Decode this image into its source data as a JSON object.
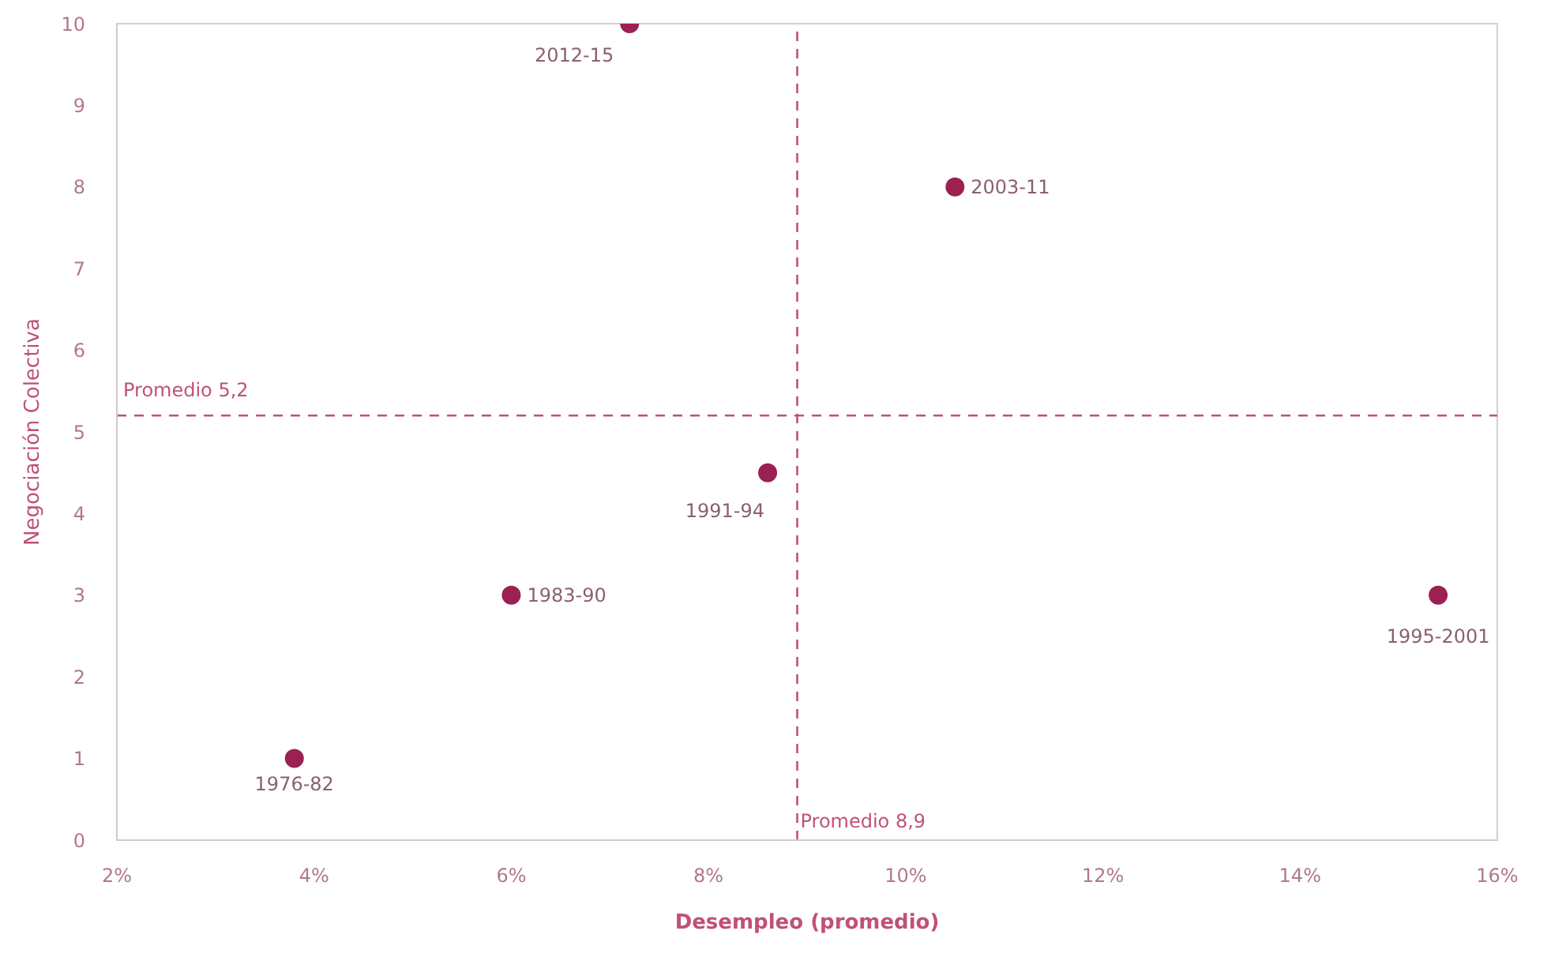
{
  "chart_data": {
    "type": "scatter",
    "xlabel": "Desempleo (promedio)",
    "ylabel": "Negociación Colectiva",
    "x": [
      3.8,
      6.0,
      8.6,
      15.4,
      10.5,
      7.2
    ],
    "series": [
      {
        "color": "#9b2152",
        "values": [
          1,
          3,
          4.5,
          3,
          8,
          10
        ]
      }
    ],
    "marker": "circle",
    "xlim": [
      2,
      16
    ],
    "xticks": [
      {
        "value": 2,
        "label": "2%"
      },
      {
        "value": 4,
        "label": "4%"
      },
      {
        "value": 6,
        "label": "6%"
      },
      {
        "value": 8,
        "label": "8%"
      },
      {
        "value": 10,
        "label": "10%"
      },
      {
        "value": 12,
        "label": "12%"
      },
      {
        "value": 14,
        "label": "14%"
      },
      {
        "value": 16,
        "label": "16%"
      }
    ],
    "ylim": [
      0,
      10
    ],
    "yticks": [
      0,
      1,
      2,
      3,
      4,
      5,
      6,
      7,
      8,
      9,
      10
    ],
    "ref_lines": [
      {
        "axis": "y",
        "value": 5.2,
        "label": "Promedio 5,2",
        "color": "#c0507a",
        "line_style": "dashed"
      },
      {
        "axis": "x",
        "value": 8.9,
        "label": "Promedio 8,9",
        "color": "#c0507a",
        "line_style": "dashed"
      }
    ],
    "annotations": [
      {
        "text": "1976-82",
        "x": 3.8,
        "y": 1
      },
      {
        "text": "1983-90",
        "x": 6.0,
        "y": 3
      },
      {
        "text": "1991-94",
        "x": 8.6,
        "y": 4.5
      },
      {
        "text": "1995-2001",
        "x": 15.4,
        "y": 3
      },
      {
        "text": "2003-11",
        "x": 10.5,
        "y": 8
      },
      {
        "text": "2012-15",
        "x": 7.2,
        "y": 10
      }
    ]
  }
}
